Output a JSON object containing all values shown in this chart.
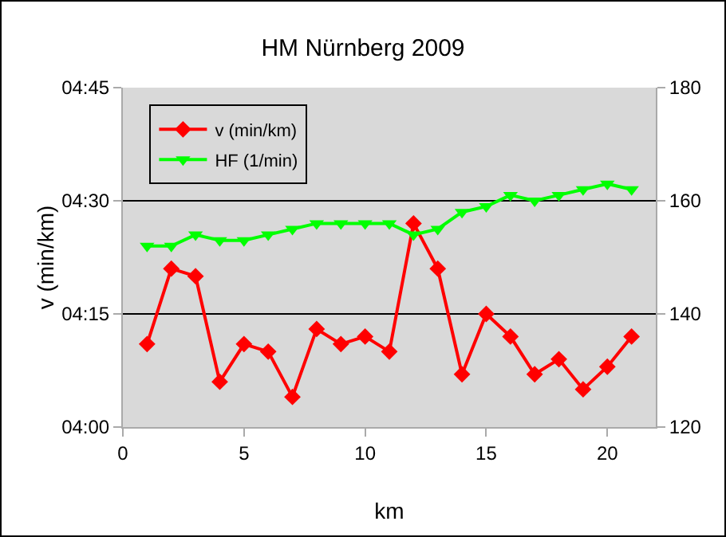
{
  "chart_data": {
    "type": "line",
    "title": "HM Nürnberg 2009",
    "xlabel": "km",
    "ylabel": "v (min/km)",
    "x": [
      1,
      2,
      3,
      4,
      5,
      6,
      7,
      8,
      9,
      10,
      11,
      12,
      13,
      14,
      15,
      16,
      17,
      18,
      19,
      20,
      21
    ],
    "series": [
      {
        "name": "v (min/km)",
        "color": "#ff0000",
        "marker": "diamond",
        "values": [
          251,
          261,
          260,
          246,
          251,
          250,
          244,
          253,
          251,
          252,
          250,
          267,
          261,
          247,
          255,
          252,
          247,
          249,
          245,
          248,
          252
        ]
      },
      {
        "name": "HF (1/min)",
        "color": "#00ff00",
        "marker": "triangle",
        "axis": "y2",
        "values": [
          152,
          152,
          154,
          153,
          153,
          154,
          155,
          156,
          156,
          156,
          156,
          154,
          155,
          158,
          159,
          161,
          160,
          161,
          162,
          163,
          162
        ]
      }
    ],
    "xlim": [
      0,
      22
    ],
    "xticks": [
      0,
      5,
      10,
      15,
      20
    ],
    "ylim": [
      240,
      285
    ],
    "yticks": [
      {
        "value": 240,
        "label": "04:00"
      },
      {
        "value": 255,
        "label": "04:15"
      },
      {
        "value": 270,
        "label": "04:30"
      },
      {
        "value": 285,
        "label": "04:45"
      }
    ],
    "y2lim": [
      120,
      180
    ],
    "y2ticks": [
      120,
      140,
      160,
      180
    ],
    "grid": "y",
    "legend": "top left"
  }
}
